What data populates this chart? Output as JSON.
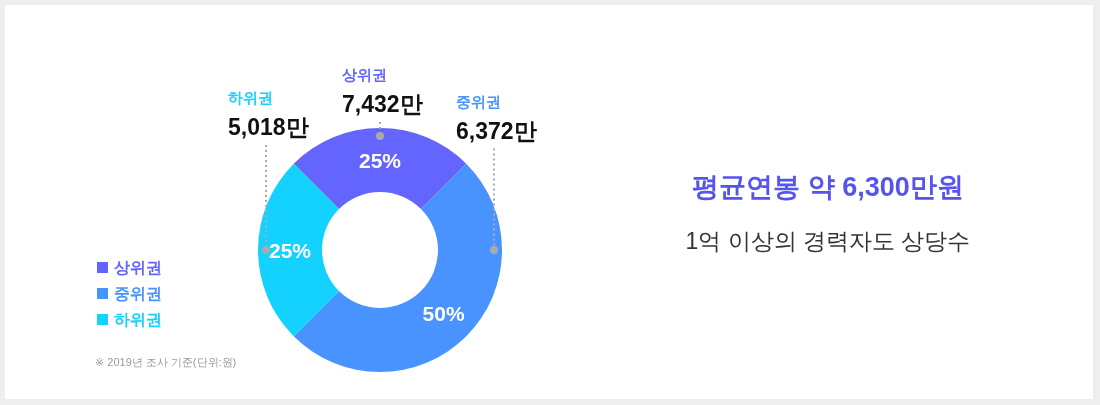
{
  "chart_data": {
    "type": "donut",
    "title": "평균연봉 약 6,300만원",
    "subtitle": "1억 이상의 경력자도 상당수",
    "categories": [
      "상위권",
      "중위권",
      "하위권"
    ],
    "values": [
      25,
      50,
      25
    ],
    "colors": [
      "#6464fe",
      "#4893ff",
      "#14d2ff"
    ],
    "value_labels": [
      "25%",
      "50%",
      "25%"
    ],
    "legend": "bottom left",
    "annotations": [
      {
        "text": "7,432만",
        "x": "상위권"
      },
      {
        "text": "6,372만",
        "x": "중위권"
      },
      {
        "text": "5,018만",
        "x": "하위권"
      },
      "※ 2019년 조사 기준(단위:원)"
    ]
  }
}
